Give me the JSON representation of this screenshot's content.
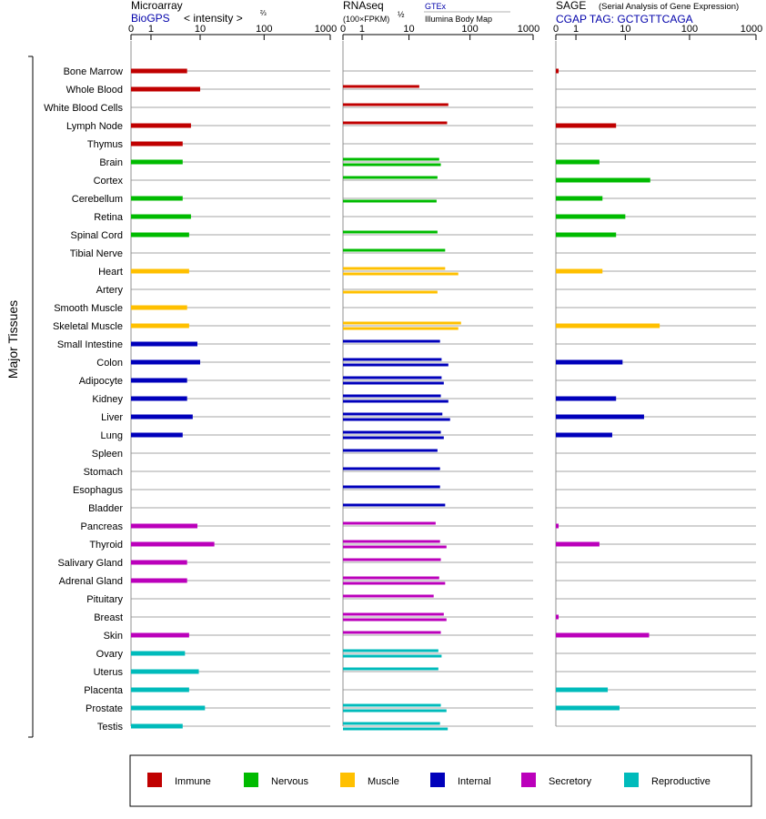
{
  "panels": [
    {
      "title": "Microarray",
      "subtitle": "BioGPS",
      "extra": "< intensity >",
      "extra_exp": "⅔",
      "extra_note": ""
    },
    {
      "title": "RNAseq",
      "subtitle": "(100×FPKM)",
      "subtitle_exp": "½",
      "legend_top": "GTEx",
      "legend_bottom": "Illumina Body Map"
    },
    {
      "title": "SAGE",
      "title_note": "(Serial Analysis of Gene Expression)",
      "subtitle": "CGAP TAG: GCTGTTCAGA"
    }
  ],
  "y_axis_label": "Major Tissues",
  "tick_labels": [
    "0",
    "1",
    "10",
    "100",
    "1000"
  ],
  "legend": [
    {
      "label": "Immune",
      "color": "#c00000"
    },
    {
      "label": "Nervous",
      "color": "#00bb00"
    },
    {
      "label": "Muscle",
      "color": "#ffc000"
    },
    {
      "label": "Internal",
      "color": "#0000bb"
    },
    {
      "label": "Secretory",
      "color": "#bb00bb"
    },
    {
      "label": "Reproductive",
      "color": "#00bbbb"
    }
  ],
  "chart_data": {
    "type": "bar",
    "orientation": "horizontal",
    "x_scale": "log-like, ticks at 0, 1, 10, 100, 1000",
    "xlim": [
      0,
      1000
    ],
    "categories": [
      "Bone Marrow",
      "Whole Blood",
      "White Blood Cells",
      "Lymph Node",
      "Thymus",
      "Brain",
      "Cortex",
      "Cerebellum",
      "Retina",
      "Spinal Cord",
      "Tibial Nerve",
      "Heart",
      "Artery",
      "Smooth Muscle",
      "Skeletal Muscle",
      "Small Intestine",
      "Colon",
      "Adipocyte",
      "Kidney",
      "Liver",
      "Lung",
      "Spleen",
      "Stomach",
      "Esophagus",
      "Bladder",
      "Pancreas",
      "Thyroid",
      "Salivary Gland",
      "Adrenal Gland",
      "Pituitary",
      "Breast",
      "Skin",
      "Ovary",
      "Uterus",
      "Placenta",
      "Prostate",
      "Testis"
    ],
    "groups": [
      "Immune",
      "Immune",
      "Immune",
      "Immune",
      "Immune",
      "Nervous",
      "Nervous",
      "Nervous",
      "Nervous",
      "Nervous",
      "Nervous",
      "Muscle",
      "Muscle",
      "Muscle",
      "Muscle",
      "Internal",
      "Internal",
      "Internal",
      "Internal",
      "Internal",
      "Internal",
      "Internal",
      "Internal",
      "Internal",
      "Internal",
      "Secretory",
      "Secretory",
      "Secretory",
      "Secretory",
      "Secretory",
      "Secretory",
      "Secretory",
      "Reproductive",
      "Reproductive",
      "Reproductive",
      "Reproductive",
      "Reproductive"
    ],
    "series": [
      {
        "name": "Microarray",
        "values": [
          6,
          10,
          null,
          7,
          5,
          5,
          null,
          5,
          7,
          6.5,
          null,
          6.5,
          null,
          6,
          6.5,
          9,
          10,
          6,
          6,
          7.5,
          5,
          null,
          null,
          null,
          null,
          9,
          17,
          6,
          6,
          null,
          null,
          6.5,
          5.5,
          9.5,
          6.5,
          12,
          5
        ]
      },
      {
        "name": "GTEx",
        "values": [
          null,
          15,
          45,
          43,
          null,
          32,
          30,
          null,
          null,
          30,
          40,
          40,
          null,
          null,
          72,
          33,
          35,
          35,
          34,
          36,
          34,
          30,
          33,
          33,
          40,
          28,
          33,
          34,
          32,
          26,
          38,
          34,
          31,
          31,
          null,
          34,
          33
        ]
      },
      {
        "name": "Illumina Body Map",
        "values": [
          null,
          null,
          null,
          null,
          null,
          34,
          null,
          29,
          null,
          null,
          null,
          65,
          30,
          null,
          65,
          null,
          45,
          38,
          45,
          48,
          38,
          null,
          null,
          null,
          null,
          null,
          42,
          null,
          40,
          null,
          42,
          null,
          35,
          null,
          null,
          42,
          44
        ]
      },
      {
        "name": "SAGE",
        "values": [
          0.1,
          null,
          null,
          7,
          null,
          3.5,
          25,
          4,
          10,
          7,
          null,
          4,
          null,
          null,
          35,
          null,
          9,
          null,
          7,
          20,
          6,
          null,
          null,
          null,
          null,
          0.1,
          3.5,
          null,
          null,
          null,
          0.1,
          24,
          null,
          null,
          5,
          8,
          null
        ]
      }
    ]
  }
}
